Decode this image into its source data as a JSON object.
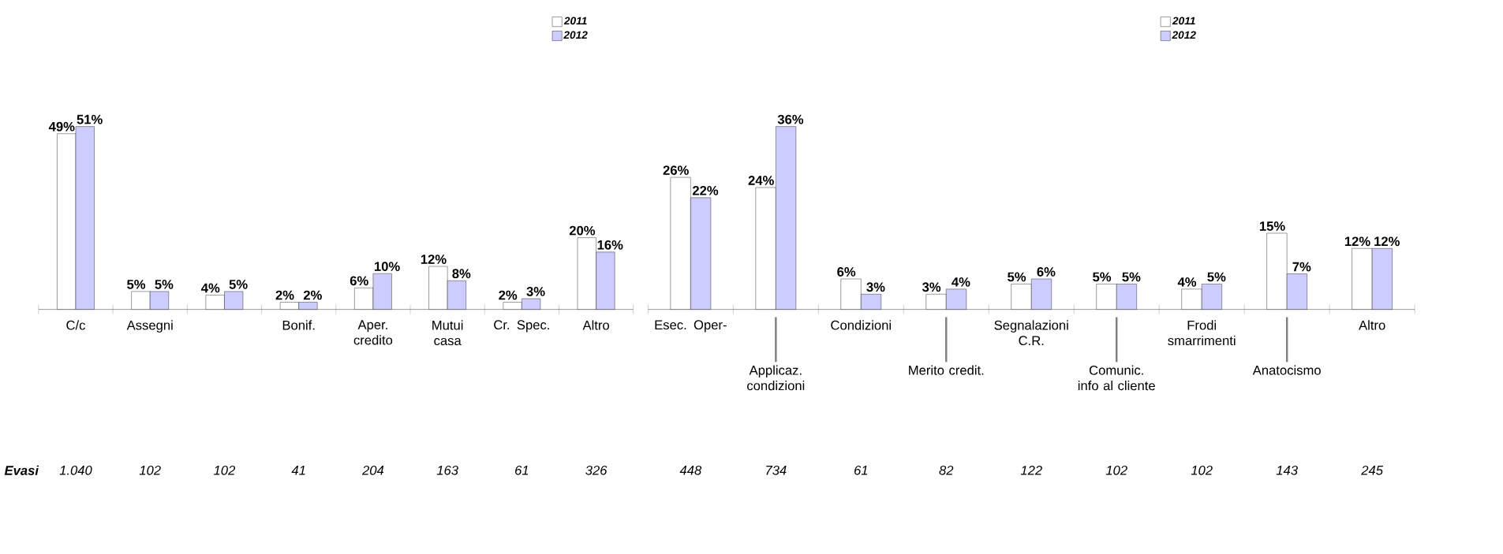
{
  "chart_data": [
    {
      "type": "bar",
      "categories": [
        "C/c",
        "Assegni",
        null,
        "Bonif.",
        "Aper. credito",
        "Mutui casa",
        "Cr. Spec.",
        "Altro"
      ],
      "series": [
        {
          "name": "2011",
          "color": "#ffffff",
          "values": [
            49,
            5,
            4,
            2,
            6,
            12,
            2,
            20
          ],
          "value_labels": [
            "49%",
            "5%",
            "4%",
            "2%",
            "6%",
            "12%",
            "2%",
            "20%"
          ]
        },
        {
          "name": "2012",
          "color": "#ccccff",
          "values": [
            51,
            5,
            5,
            2,
            10,
            8,
            3,
            16
          ],
          "value_labels": [
            "51%",
            "5%",
            "5%",
            "2%",
            "10%",
            "8%",
            "3%",
            "16%"
          ]
        }
      ],
      "legend": "top right",
      "annotations": [
        "Evasi",
        "1.040",
        "102",
        "102",
        "41",
        "204",
        "163",
        "61",
        "326"
      ]
    },
    {
      "type": "bar",
      "categories": [
        "Esec. Oper-",
        "Applicaz. condizioni",
        "Condizioni",
        "Merito credit.",
        "Segnalazioni C.R.",
        "Comunic. info al cliente",
        "Frodi smarrimenti",
        "Anatocismo",
        "Altro"
      ],
      "series": [
        {
          "name": "2011",
          "color": "#ffffff",
          "values": [
            26,
            24,
            6,
            3,
            5,
            5,
            4,
            15,
            12
          ],
          "value_labels": [
            "26%",
            "24%",
            "6%",
            "3%",
            "5%",
            "5%",
            "4%",
            "15%",
            "12%"
          ]
        },
        {
          "name": "2012",
          "color": "#ccccff",
          "values": [
            22,
            36,
            3,
            4,
            6,
            5,
            5,
            7,
            12
          ],
          "value_labels": [
            "22%",
            "36%",
            "3%",
            "4%",
            "6%",
            "5%",
            "5%",
            "7%",
            "12%"
          ]
        }
      ],
      "legend": "top right",
      "annotations": [
        "448",
        "734",
        "61",
        "82",
        "122",
        "102",
        "102",
        "143",
        "245"
      ]
    }
  ]
}
